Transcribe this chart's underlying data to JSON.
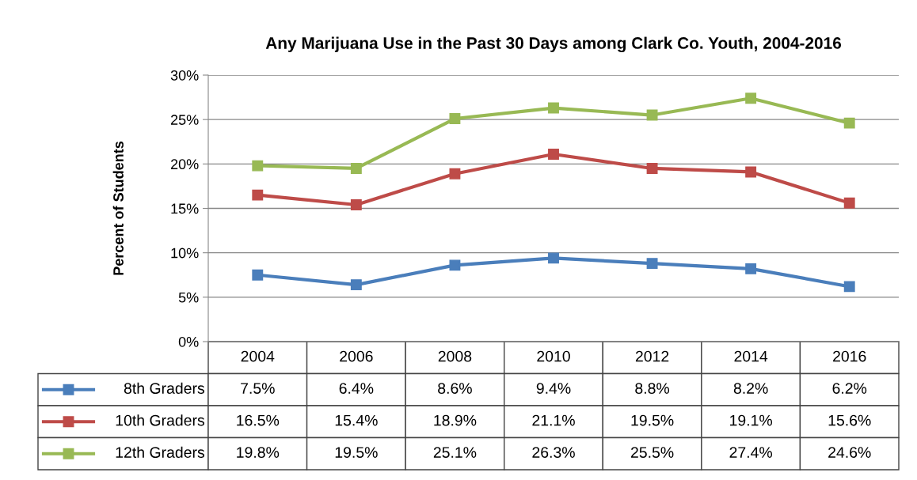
{
  "chart_data": {
    "type": "line",
    "title": "Any Marijuana Use in the Past 30 Days among Clark Co. Youth, 2004-2016",
    "ylabel": "Percent of Students",
    "categories": [
      "2004",
      "2006",
      "2008",
      "2010",
      "2012",
      "2014",
      "2016"
    ],
    "series": [
      {
        "name": "8th Graders",
        "color": "#4a7ebb",
        "values": [
          7.5,
          6.4,
          8.6,
          9.4,
          8.8,
          8.2,
          6.2
        ],
        "value_labels": [
          "7.5%",
          "6.4%",
          "8.6%",
          "9.4%",
          "8.8%",
          "8.2%",
          "6.2%"
        ]
      },
      {
        "name": "10th Graders",
        "color": "#be4b48",
        "values": [
          16.5,
          15.4,
          18.9,
          21.1,
          19.5,
          19.1,
          15.6
        ],
        "value_labels": [
          "16.5%",
          "15.4%",
          "18.9%",
          "21.1%",
          "19.5%",
          "19.1%",
          "15.6%"
        ]
      },
      {
        "name": "12th Graders",
        "color": "#98b954",
        "values": [
          19.8,
          19.5,
          25.1,
          26.3,
          25.5,
          27.4,
          24.6
        ],
        "value_labels": [
          "19.8%",
          "19.5%",
          "25.1%",
          "26.3%",
          "25.5%",
          "27.4%",
          "24.6%"
        ]
      }
    ],
    "ylim": [
      0,
      30
    ],
    "yticks": [
      {
        "value": 0,
        "label": "0%"
      },
      {
        "value": 5,
        "label": "5%"
      },
      {
        "value": 10,
        "label": "10%"
      },
      {
        "value": 15,
        "label": "15%"
      },
      {
        "value": 20,
        "label": "20%"
      },
      {
        "value": 25,
        "label": "25%"
      },
      {
        "value": 30,
        "label": "30%"
      }
    ],
    "grid": "y",
    "marker": "square",
    "line_style": "solid",
    "legend": "bottom"
  }
}
